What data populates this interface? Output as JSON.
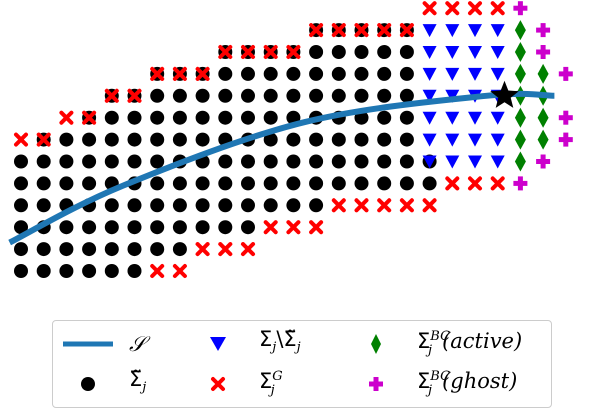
{
  "chart_data": {
    "type": "scatter",
    "title": "",
    "xlabel": "",
    "ylabel": "",
    "grid": false,
    "axes_visible": false,
    "legend_position": "bottom",
    "colors": {
      "curve": "#1f77b4",
      "interior": "#000000",
      "boundary": "#0000ff",
      "ghost_fringe": "#ff0000",
      "bc_active": "#008000",
      "bc_ghost": "#cc00cc",
      "star": "#000000"
    },
    "series": [
      {
        "name": "S",
        "kind": "curve",
        "x": [
          -0.5,
          4.5,
          12.5,
          20.5,
          23.5
        ],
        "y": [
          1.3,
          3.9,
          6.8,
          8.0,
          8.0
        ]
      },
      {
        "name": "interior",
        "kind": "points",
        "marker": "circle",
        "rows": [
          {
            "y": 0,
            "x_from": 0,
            "x_to": 5
          },
          {
            "y": 1,
            "x_from": 0,
            "x_to": 7
          },
          {
            "y": 2,
            "x_from": 0,
            "x_to": 10
          },
          {
            "y": 3,
            "x_from": 0,
            "x_to": 13
          },
          {
            "y": 4,
            "x_from": 0,
            "x_to": 18
          },
          {
            "y": 5,
            "x_from": 0,
            "x_to": 18
          },
          {
            "y": 6,
            "x_from": 1,
            "x_to": 17
          },
          {
            "y": 7,
            "x_from": 3,
            "x_to": 17
          },
          {
            "y": 8,
            "x_from": 4,
            "x_to": 17
          },
          {
            "y": 9,
            "x_from": 6,
            "x_to": 17
          },
          {
            "y": 10,
            "x_from": 9,
            "x_to": 17
          },
          {
            "y": 11,
            "x_from": 13,
            "x_to": 17
          }
        ]
      },
      {
        "name": "boundary",
        "kind": "points",
        "marker": "triangle-down",
        "rows": [
          {
            "y": 5,
            "x_from": 18,
            "x_to": 21
          },
          {
            "y": 6,
            "x_from": 18,
            "x_to": 21
          },
          {
            "y": 7,
            "x_from": 18,
            "x_to": 21
          },
          {
            "y": 8,
            "x_from": 18,
            "x_to": 21
          },
          {
            "y": 9,
            "x_from": 18,
            "x_to": 21
          },
          {
            "y": 10,
            "x_from": 18,
            "x_to": 21
          },
          {
            "y": 11,
            "x_from": 18,
            "x_to": 21
          }
        ]
      },
      {
        "name": "fringe",
        "kind": "points",
        "marker": "x",
        "points": [
          [
            6,
            0
          ],
          [
            7,
            0
          ],
          [
            8,
            1
          ],
          [
            9,
            1
          ],
          [
            10,
            1
          ],
          [
            11,
            2
          ],
          [
            12,
            2
          ],
          [
            13,
            2
          ],
          [
            14,
            3
          ],
          [
            15,
            3
          ],
          [
            16,
            3
          ],
          [
            17,
            3
          ],
          [
            18,
            3
          ],
          [
            19,
            4
          ],
          [
            20,
            4
          ],
          [
            21,
            4
          ],
          [
            0,
            6
          ],
          [
            1,
            6
          ],
          [
            2,
            7
          ],
          [
            3,
            7
          ],
          [
            4,
            8
          ],
          [
            5,
            8
          ],
          [
            6,
            9
          ],
          [
            7,
            9
          ],
          [
            8,
            9
          ],
          [
            9,
            10
          ],
          [
            10,
            10
          ],
          [
            11,
            10
          ],
          [
            12,
            10
          ],
          [
            13,
            11
          ],
          [
            14,
            11
          ],
          [
            15,
            11
          ],
          [
            16,
            11
          ],
          [
            17,
            11
          ],
          [
            18,
            12
          ],
          [
            19,
            12
          ],
          [
            20,
            12
          ],
          [
            21,
            12
          ]
        ]
      },
      {
        "name": "bc_active",
        "kind": "points",
        "marker": "thin-diamond",
        "points": [
          [
            22,
            5
          ],
          [
            22,
            6
          ],
          [
            23,
            6
          ],
          [
            22,
            7
          ],
          [
            23,
            7
          ],
          [
            22,
            8
          ],
          [
            23,
            8
          ],
          [
            22,
            9
          ],
          [
            23,
            9
          ],
          [
            22,
            10
          ],
          [
            22,
            11
          ]
        ]
      },
      {
        "name": "bc_ghost",
        "kind": "points",
        "marker": "plus",
        "points": [
          [
            22,
            4
          ],
          [
            23,
            5
          ],
          [
            24,
            6
          ],
          [
            24,
            7
          ],
          [
            24,
            9
          ],
          [
            23,
            10
          ],
          [
            23,
            11
          ],
          [
            22,
            12
          ]
        ]
      },
      {
        "name": "star",
        "kind": "points",
        "marker": "star",
        "points": [
          [
            21.3,
            8.0
          ]
        ]
      }
    ],
    "legend": [
      {
        "series": "S",
        "symbol": "line",
        "parts": {
          "main": "𝒮"
        }
      },
      {
        "series": "interior",
        "symbol": "circle",
        "parts": {
          "main": "Σ̃",
          "sub": "j"
        }
      },
      {
        "series": "boundary",
        "symbol": "triangle-down",
        "parts": {
          "main": "Σ",
          "sub": "j",
          "mid": "\\Σ̃",
          "sub2": "j"
        }
      },
      {
        "series": "fringe",
        "symbol": "x",
        "parts": {
          "main": "Σ",
          "sub": "j",
          "sup": "G"
        }
      },
      {
        "series": "bc_active",
        "symbol": "thin-diamond",
        "parts": {
          "main": "Σ",
          "sub": "j",
          "sup": "BC",
          "tail": "(active)"
        }
      },
      {
        "series": "bc_ghost",
        "symbol": "plus",
        "parts": {
          "main": "Σ",
          "sub": "j",
          "sup": "BC",
          "tail": "(ghost)"
        }
      }
    ]
  }
}
